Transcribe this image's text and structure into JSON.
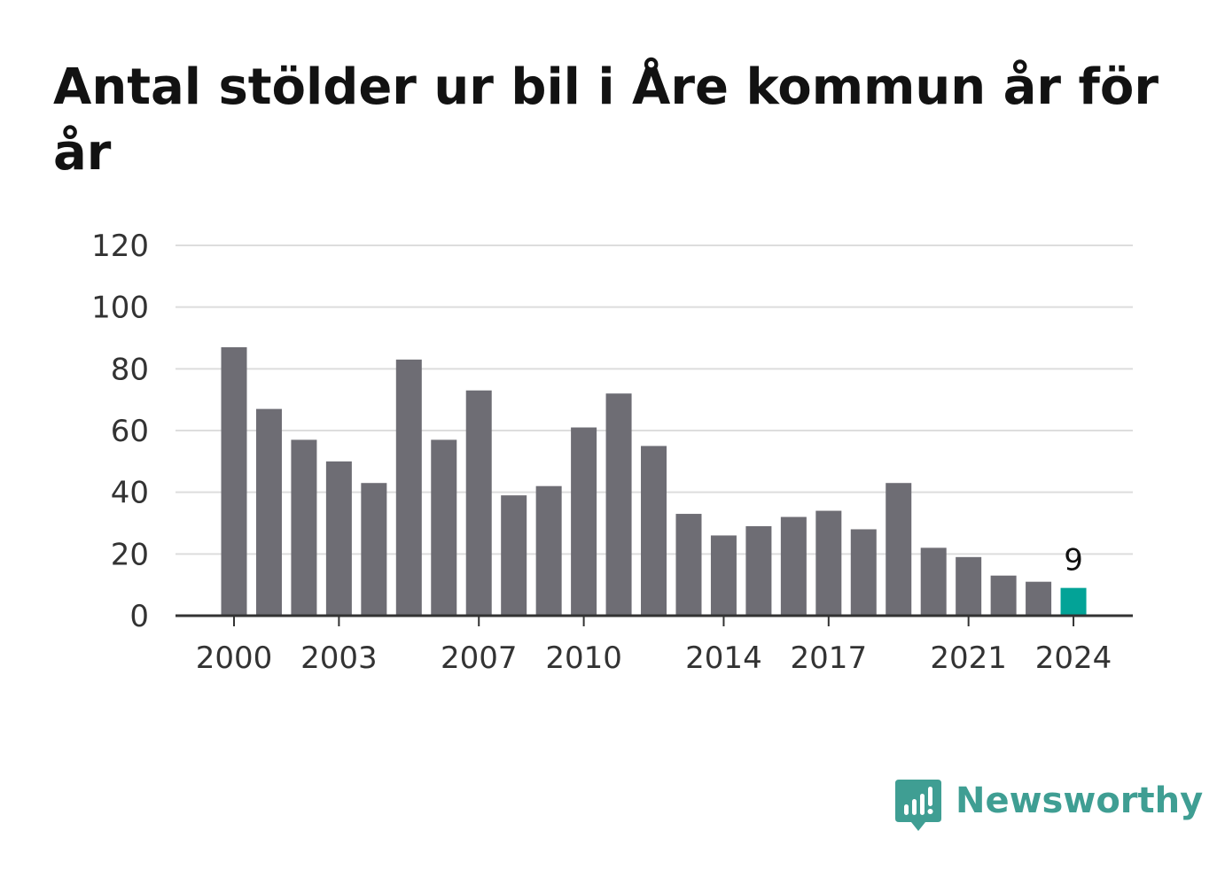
{
  "title": "Antal stölder ur bil i Åre kommun år för år",
  "brand": {
    "name": "Newsworthy",
    "icon": "newsworthy-logo-icon",
    "color": "#3f9e93"
  },
  "colors": {
    "bar": "#6e6d74",
    "highlight": "#03a397",
    "grid": "#dddddd",
    "axis": "#333333"
  },
  "chart_data": {
    "type": "bar",
    "title": "Antal stölder ur bil i Åre kommun år för år",
    "xlabel": "",
    "ylabel": "",
    "categories": [
      "2000",
      "2001",
      "2002",
      "2003",
      "2004",
      "2005",
      "2006",
      "2007",
      "2008",
      "2009",
      "2010",
      "2011",
      "2012",
      "2013",
      "2014",
      "2015",
      "2016",
      "2017",
      "2018",
      "2019",
      "2020",
      "2021",
      "2022",
      "2023",
      "2024"
    ],
    "values": [
      87,
      67,
      57,
      50,
      43,
      83,
      57,
      73,
      39,
      42,
      61,
      72,
      55,
      33,
      26,
      29,
      32,
      34,
      28,
      43,
      22,
      19,
      13,
      11,
      9
    ],
    "highlight_index": 24,
    "data_labels": [
      {
        "category": "2024",
        "text": "9"
      }
    ],
    "ylim": [
      0,
      120
    ],
    "yticks": [
      "0",
      "20",
      "40",
      "60",
      "80",
      "100",
      "120"
    ],
    "xtick_labels": [
      "2000",
      "2003",
      "2007",
      "2010",
      "2014",
      "2017",
      "2021",
      "2024"
    ],
    "grid": true,
    "legend": "none"
  }
}
